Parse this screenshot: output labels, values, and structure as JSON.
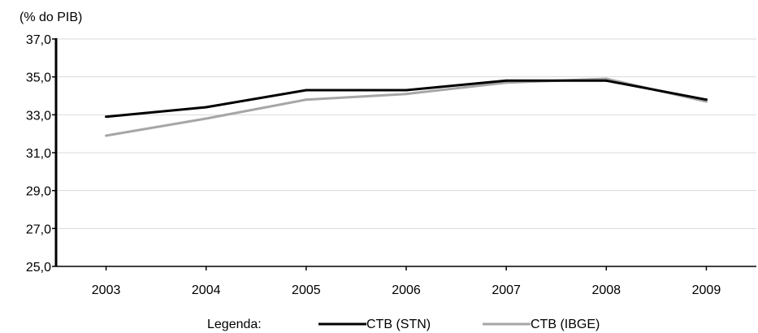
{
  "chart_data": {
    "type": "line",
    "title": "",
    "unit_label": "(% do PIB)",
    "xlabel": "",
    "ylabel": "",
    "categories": [
      "2003",
      "2004",
      "2005",
      "2006",
      "2007",
      "2008",
      "2009"
    ],
    "ylim": [
      25.0,
      37.0
    ],
    "yticks": [
      "25,0",
      "27,0",
      "29,0",
      "31,0",
      "33,0",
      "35,0",
      "37,0"
    ],
    "grid": true,
    "legend_title": "Legenda:",
    "legend_position": "bottom",
    "series": [
      {
        "name": "CTB (STN)",
        "color": "#000000",
        "values": [
          32.9,
          33.4,
          34.3,
          34.3,
          34.8,
          34.8,
          33.8
        ]
      },
      {
        "name": "CTB (IBGE)",
        "color": "#a6a6a6",
        "values": [
          31.9,
          32.8,
          33.8,
          34.1,
          34.7,
          34.9,
          33.7
        ]
      }
    ]
  }
}
